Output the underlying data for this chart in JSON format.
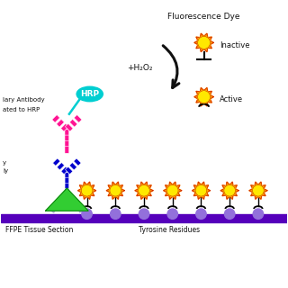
{
  "bg_color": "#ffffff",
  "sun_yellow": "#FFE800",
  "sun_orange": "#FF8C00",
  "sun_red": "#CC2200",
  "hrp_color": "#00CED1",
  "ab_pink": "#FF1493",
  "ab_light_pink": "#FFB6C1",
  "ab_blue": "#0000CD",
  "ab_light_blue": "#AAAACC",
  "triangle_green": "#32CD32",
  "purple": "#9370DB",
  "purple_bar": "#5500BB",
  "text_dark": "#111111",
  "arrow_dark": "#111111",
  "label_ffpe": "FFPE Tissue Section",
  "label_tyrosine": "Tyrosine Residues",
  "label_fluorescence": "Fluorescence Dye",
  "label_inactive": "Inactive",
  "label_active": "Active",
  "label_h2o2": "+H₂O₂",
  "label_hrp": "HRP",
  "label_antibody1": "lary Antibody",
  "label_antibody2": "ated to HRP",
  "label_primary1": "y",
  "label_primary2": "ly"
}
